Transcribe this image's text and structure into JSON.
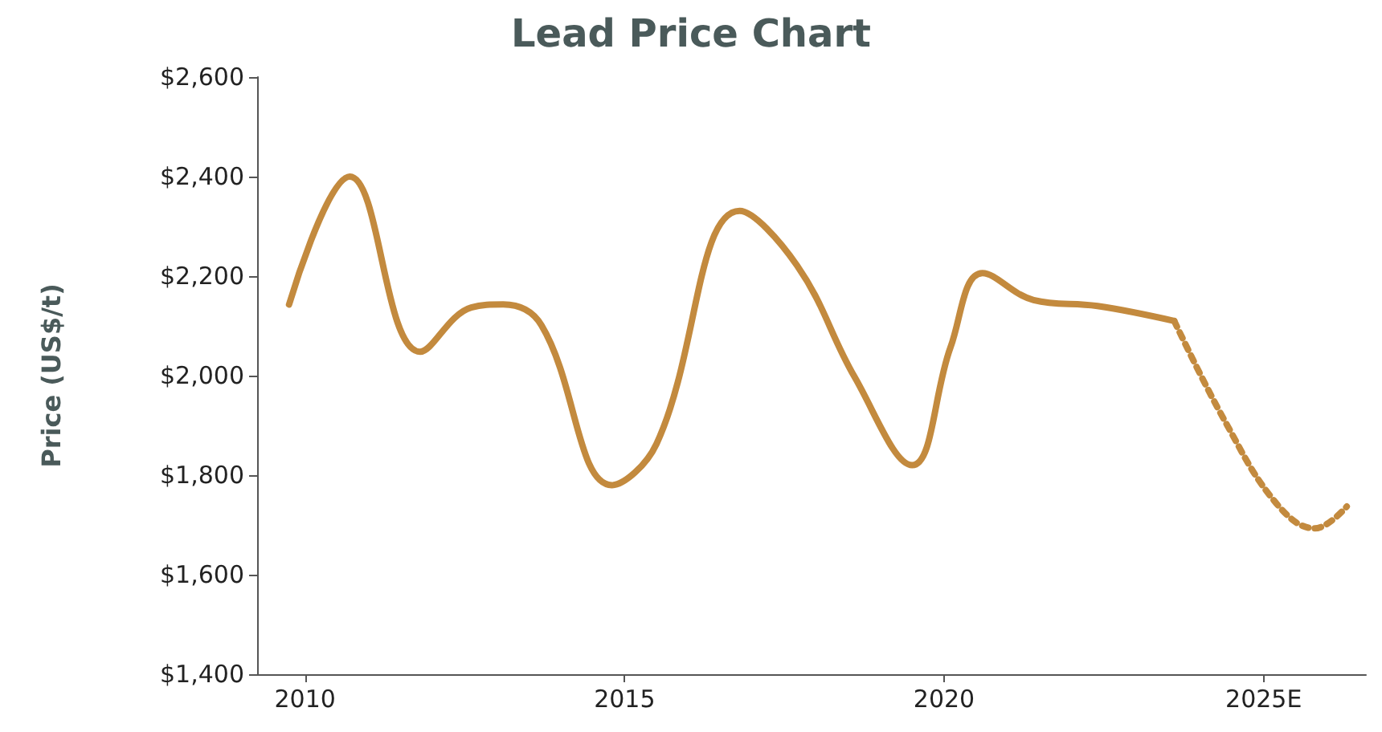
{
  "chart_data": {
    "type": "line",
    "title": "Lead Price Chart",
    "ylabel": "Price (US$/t)",
    "series": [
      {
        "color": "#c38a3e",
        "line_style": "solid",
        "x": [
          2009.75,
          2010.7,
          2011.8,
          2012.6,
          2013.1,
          2013.7,
          2014.8,
          2015.5,
          2016.8,
          2017.7,
          2018.6,
          2019.5,
          2020.1,
          2020.6,
          2021.4,
          2022.4,
          2023.6
        ],
        "values": [
          2143,
          2400,
          2048,
          2137,
          2143,
          2101,
          1780,
          1863,
          2331,
          2221,
          1997,
          1820,
          2057,
          2206,
          2152,
          2140,
          2110
        ]
      },
      {
        "color": "#c38a3e",
        "line_style": "dotted",
        "x": [
          2023.6,
          2024.4,
          2025.2,
          2025.8,
          2026.3
        ],
        "values": [
          2110,
          1907,
          1743,
          1693,
          1737
        ]
      }
    ],
    "xlim": [
      2009.25,
      2026.6
    ],
    "xticks": [
      2010,
      2015,
      2020,
      {
        "value": 2025,
        "label": "2025E"
      }
    ],
    "ylim": [
      1400,
      2600
    ],
    "yticks": [
      {
        "value": 1400,
        "label": "$1,400"
      },
      {
        "value": 1600,
        "label": "$1,600"
      },
      {
        "value": 1800,
        "label": "$1,800"
      },
      {
        "value": 2000,
        "label": "$2,000"
      },
      {
        "value": 2200,
        "label": "$2,200"
      },
      {
        "value": 2400,
        "label": "$2,400"
      },
      {
        "value": 2600,
        "label": "$2,600"
      }
    ],
    "marker": "none"
  }
}
